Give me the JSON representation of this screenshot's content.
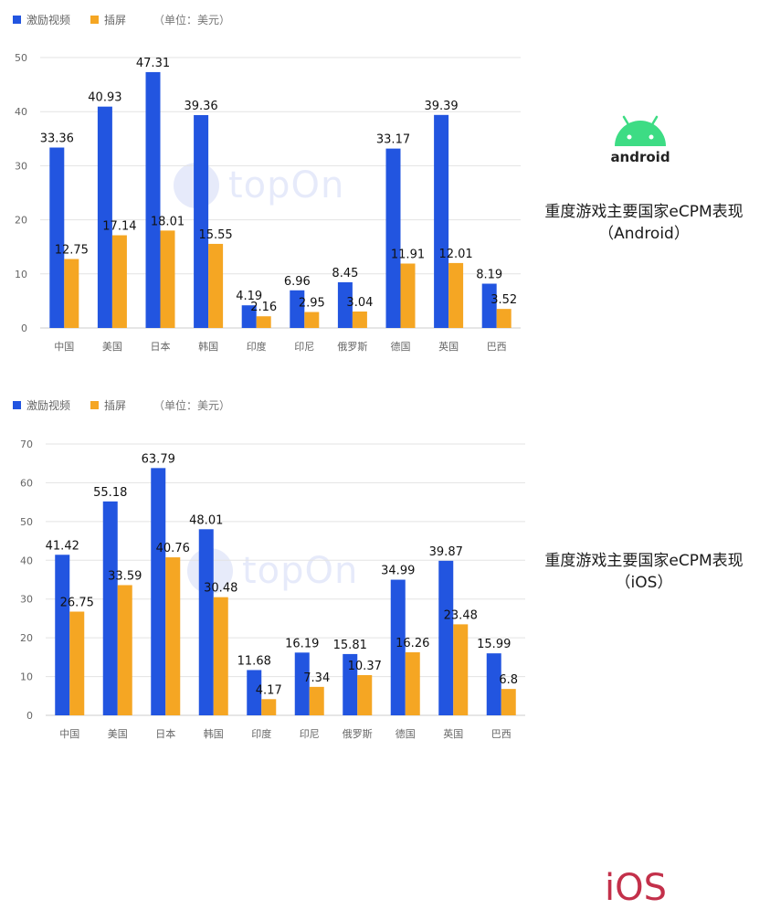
{
  "legend": {
    "series1": "激励视频",
    "series2": "插屏",
    "unit": "（单位：美元）"
  },
  "colors": {
    "blue": "#2255e0",
    "orange": "#f5a623",
    "grid": "#e3e3e3",
    "axis": "#cccccc"
  },
  "watermark": "topOn",
  "android": {
    "logo_text": "android",
    "title_line1": "重度游戏主要国家eCPM表现",
    "title_line2": "（Android）"
  },
  "ios": {
    "logo_text": "iOS",
    "title_line1": "重度游戏主要国家eCPM表现",
    "title_line2": "（iOS）"
  },
  "chart_data": [
    {
      "type": "bar",
      "categories": [
        "中国",
        "美国",
        "日本",
        "韩国",
        "印度",
        "印尼",
        "俄罗斯",
        "德国",
        "英国",
        "巴西"
      ],
      "series": [
        {
          "name": "激励视频",
          "values": [
            33.36,
            40.93,
            47.31,
            39.36,
            4.19,
            6.96,
            8.45,
            33.17,
            39.39,
            8.19
          ]
        },
        {
          "name": "插屏",
          "values": [
            12.75,
            17.14,
            18.01,
            15.55,
            2.16,
            2.95,
            3.04,
            11.91,
            12.01,
            3.52
          ]
        }
      ],
      "ylim": [
        0,
        50
      ],
      "yticks": [
        0,
        10,
        20,
        30,
        40,
        50
      ],
      "grid": true,
      "legend_position": "top-left"
    },
    {
      "type": "bar",
      "categories": [
        "中国",
        "美国",
        "日本",
        "韩国",
        "印度",
        "印尼",
        "俄罗斯",
        "德国",
        "英国",
        "巴西"
      ],
      "series": [
        {
          "name": "激励视频",
          "values": [
            41.42,
            55.18,
            63.79,
            48.01,
            11.68,
            16.19,
            15.81,
            34.99,
            39.87,
            15.99
          ]
        },
        {
          "name": "插屏",
          "values": [
            26.75,
            33.59,
            40.76,
            30.48,
            4.17,
            7.34,
            10.37,
            16.26,
            23.48,
            6.8
          ]
        }
      ],
      "ylim": [
        0,
        70
      ],
      "yticks": [
        0,
        10,
        20,
        30,
        40,
        50,
        60,
        70
      ],
      "grid": true,
      "legend_position": "top-left"
    }
  ]
}
